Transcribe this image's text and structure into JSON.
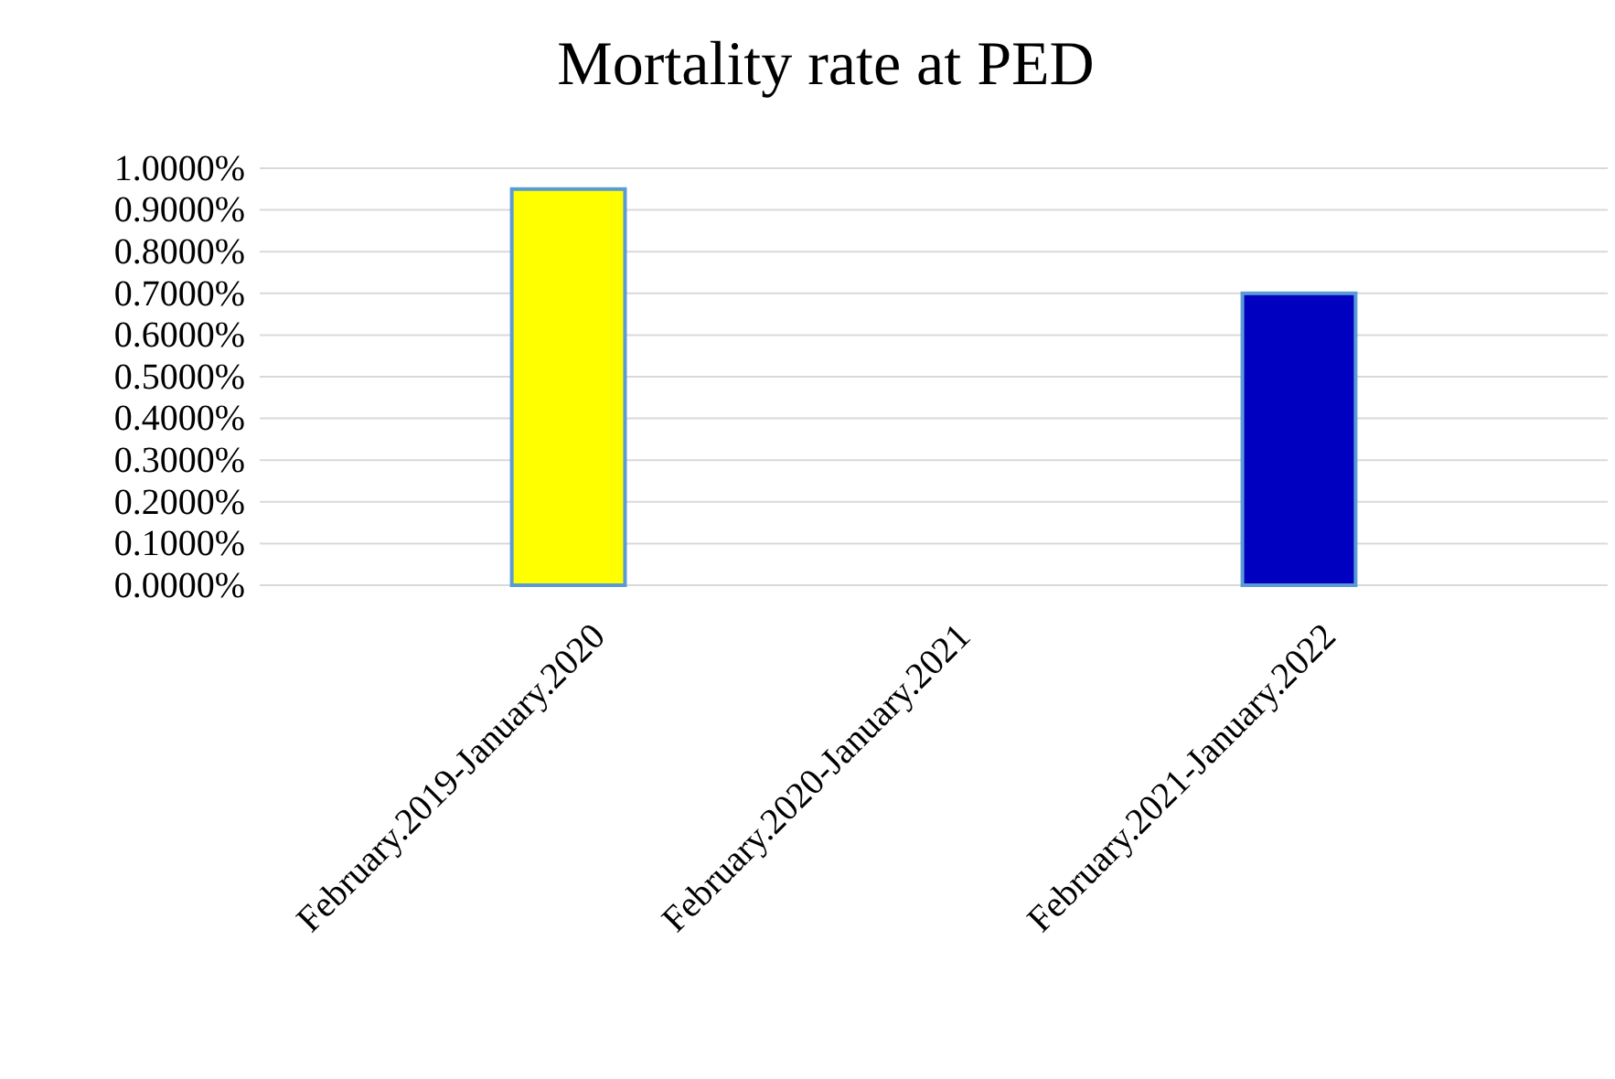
{
  "chart_data": {
    "type": "bar",
    "title": "Mortality rate at PED",
    "categories": [
      "February.2019-January.2020",
      "February.2020-January.2021",
      "February.2021-January.2022"
    ],
    "values": [
      0.95,
      0,
      0.7
    ],
    "colors": [
      "#ffff00",
      "#ffff00",
      "#0000c0"
    ],
    "ylim": [
      0,
      1
    ],
    "yticks": [
      {
        "value": 0,
        "label": "0.0000%"
      },
      {
        "value": 0.1,
        "label": "0.1000%"
      },
      {
        "value": 0.2,
        "label": "0.2000%"
      },
      {
        "value": 0.3,
        "label": "0.3000%"
      },
      {
        "value": 0.4,
        "label": "0.4000%"
      },
      {
        "value": 0.5,
        "label": "0.5000%"
      },
      {
        "value": 0.6,
        "label": "0.6000%"
      },
      {
        "value": 0.7,
        "label": "0.7000%"
      },
      {
        "value": 0.8,
        "label": "0.8000%"
      },
      {
        "value": 0.9,
        "label": "0.9000%"
      },
      {
        "value": 1,
        "label": "1.0000%"
      }
    ],
    "grid": "y"
  }
}
